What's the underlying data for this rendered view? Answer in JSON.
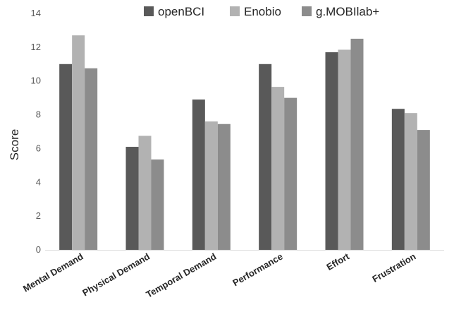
{
  "chart_data": {
    "type": "bar",
    "ylabel": "Score",
    "ylim": [
      0,
      14
    ],
    "yticks": [
      "0",
      "2",
      "4",
      "6",
      "8",
      "10",
      "12",
      "14"
    ],
    "categories": [
      "Mental Demand",
      "Physical Demand",
      "Temporal Demand",
      "Performance",
      "Effort",
      "Frustration"
    ],
    "series": [
      {
        "name": "openBCI",
        "color": "#595959",
        "values": [
          11.0,
          6.1,
          8.9,
          11.0,
          11.7,
          8.35
        ]
      },
      {
        "name": "Enobio",
        "color": "#b2b2b2",
        "values": [
          12.7,
          6.75,
          7.6,
          9.65,
          11.85,
          8.1
        ]
      },
      {
        "name": "g.MOBIlab+",
        "color": "#8c8c8c",
        "values": [
          10.75,
          5.35,
          7.45,
          9.0,
          12.5,
          7.1
        ]
      }
    ],
    "grid": false,
    "legend": "top"
  }
}
